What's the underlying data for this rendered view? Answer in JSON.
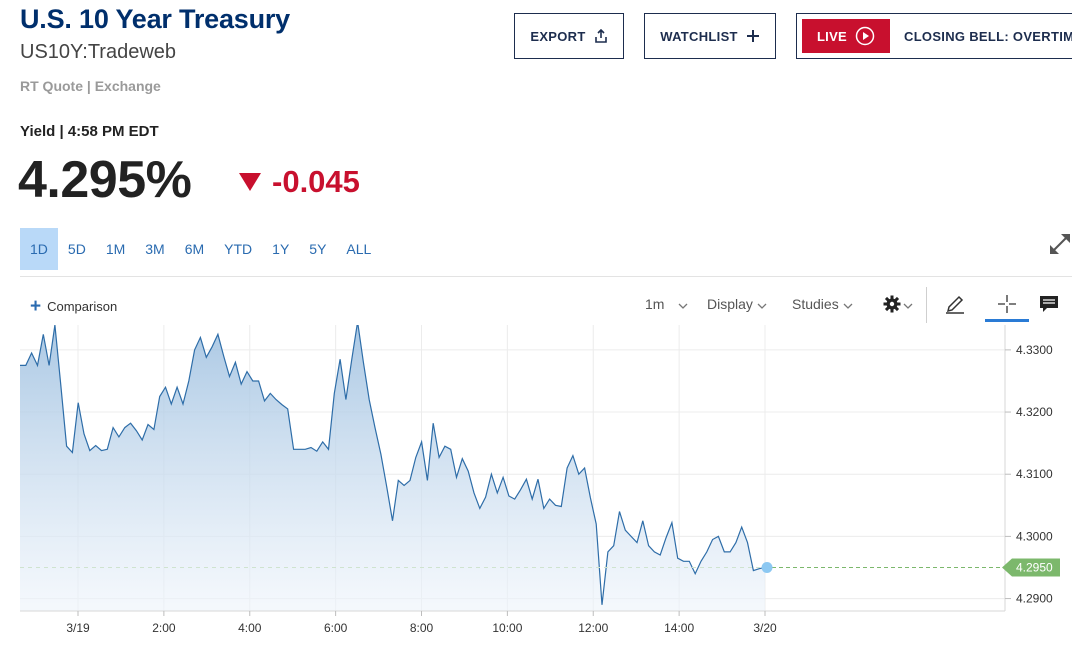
{
  "header": {
    "title": "U.S. 10 Year Treasury",
    "symbol": "US10Y:Tradeweb",
    "quote_source": "RT Quote | Exchange",
    "export_label": "EXPORT",
    "watchlist_label": "WATCHLIST",
    "live_label": "LIVE",
    "overtime_label": "CLOSING BELL: OVERTIME"
  },
  "quote": {
    "yield_label": "Yield | 4:58 PM EDT",
    "price": "4.295%",
    "change": "-0.045"
  },
  "ranges": {
    "tabs": [
      "1D",
      "5D",
      "1M",
      "3M",
      "6M",
      "YTD",
      "1Y",
      "5Y",
      "ALL"
    ],
    "active": "1D"
  },
  "toolbar": {
    "comparison_label": "Comparison",
    "interval_label": "1m",
    "display_label": "Display",
    "studies_label": "Studies"
  },
  "colors": {
    "brand_navy": "#002f6c",
    "negative_red": "#c8102e",
    "line_blue": "#2e6da8",
    "active_tab_bg": "#b9d9f8",
    "last_price_green": "#7cb86c"
  },
  "icons": [
    "export-icon",
    "plus-icon",
    "play-circle-icon",
    "down-triangle-icon",
    "expand-icon",
    "chevron-down-icon",
    "gear-icon",
    "pencil-icon",
    "crosshair-icon",
    "comment-icon"
  ],
  "chart_data": {
    "type": "area",
    "x_ticks": [
      "3/19",
      "2:00",
      "4:00",
      "6:00",
      "8:00",
      "10:00",
      "12:00",
      "14:00",
      "3/20"
    ],
    "y_ticks": [
      "4.3300",
      "4.3200",
      "4.3100",
      "4.3000",
      "4.2900"
    ],
    "ylim": [
      4.288,
      4.334
    ],
    "last_value": "4.2950",
    "grid": true,
    "series": [
      {
        "values": [
          4.3275,
          4.3275,
          4.3295,
          4.3275,
          4.3325,
          4.3275,
          4.334,
          4.3245,
          4.3145,
          4.3135,
          4.3215,
          4.3165,
          4.3138,
          4.3146,
          4.3138,
          4.314,
          4.3175,
          4.316,
          4.3175,
          4.3182,
          4.317,
          4.3155,
          4.318,
          4.3172,
          4.3225,
          4.324,
          4.3213,
          4.324,
          4.3213,
          4.325,
          4.33,
          4.332,
          4.3288,
          4.3305,
          4.3325,
          4.329,
          4.3257,
          4.328,
          4.3245,
          4.3265,
          4.325,
          4.325,
          4.3218,
          4.323,
          4.322,
          4.3212,
          4.3205,
          4.314,
          4.314,
          4.314,
          4.3143,
          4.3137,
          4.3152,
          4.314,
          4.323,
          4.3285,
          4.322,
          4.3285,
          4.3345,
          4.328,
          4.322,
          4.3175,
          4.3132,
          4.308,
          4.3025,
          4.309,
          4.3082,
          4.309,
          4.3127,
          4.3152,
          4.309,
          4.3182,
          4.3127,
          4.3145,
          4.314,
          4.3095,
          4.3125,
          4.3105,
          4.307,
          4.3045,
          4.3063,
          4.31,
          4.307,
          4.3095,
          4.3065,
          4.306,
          4.3075,
          4.3092,
          4.306,
          4.3092,
          4.3045,
          4.306,
          4.305,
          4.3048,
          4.311,
          4.313,
          4.31,
          4.311,
          4.3062,
          4.302,
          4.289,
          4.2975,
          4.2985,
          4.304,
          4.301,
          4.3,
          4.299,
          4.3025,
          4.2985,
          4.2975,
          4.297,
          4.2998,
          4.3022,
          4.2965,
          4.296,
          4.296,
          4.294,
          4.296,
          4.2975,
          4.2995,
          4.3,
          4.2975,
          4.2975,
          4.299,
          4.3015,
          4.299,
          4.2945,
          4.2948,
          4.295
        ]
      }
    ]
  }
}
